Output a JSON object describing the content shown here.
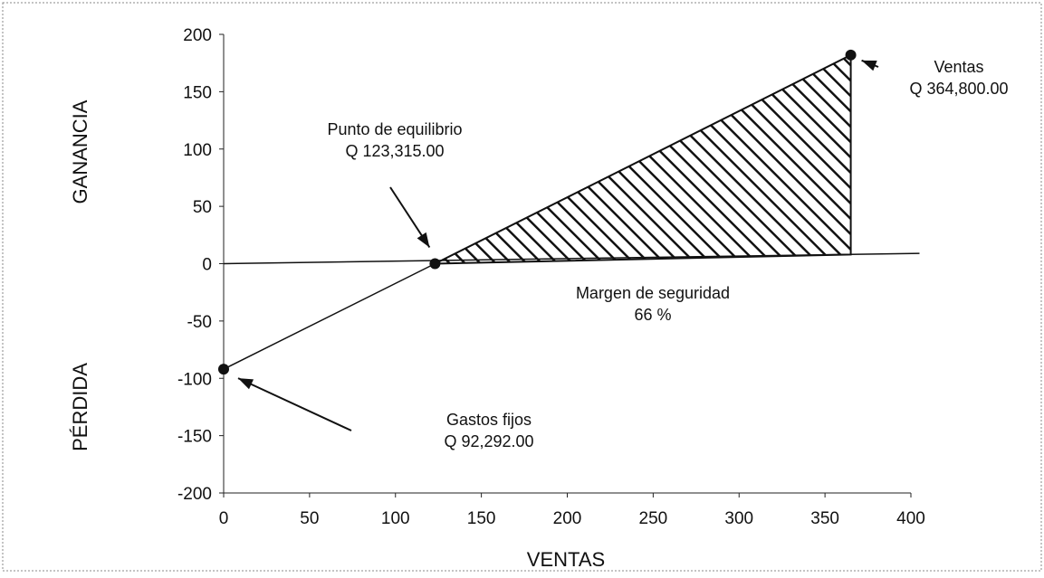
{
  "chart_data": {
    "type": "line",
    "xlabel": "VENTAS",
    "ylabel_positive": "GANANCIA",
    "ylabel_negative": "PÉRDIDA",
    "xlim": [
      0,
      400
    ],
    "ylim": [
      -200,
      200
    ],
    "xticks": [
      0,
      50,
      100,
      150,
      200,
      250,
      300,
      350,
      400
    ],
    "yticks": [
      200,
      150,
      100,
      50,
      0,
      -50,
      -100,
      -150,
      -200
    ],
    "xtick_labels": [
      "0",
      "50",
      "100",
      "150",
      "200",
      "250",
      "300",
      "350",
      "400"
    ],
    "ytick_labels": [
      "200",
      "150",
      "100",
      "50",
      "0",
      "-50",
      "-100",
      "-150",
      "-200"
    ],
    "grid": false,
    "series": [
      {
        "values": [
          {
            "x": 0,
            "y": -92
          },
          {
            "x": 123,
            "y": 0
          },
          {
            "x": 365,
            "y": 182
          }
        ]
      }
    ],
    "zero_line": [
      {
        "x": 0,
        "y": 0
      },
      {
        "x": 405,
        "y": 9
      }
    ],
    "shaded_region": {
      "fill": "hatched",
      "vertices": [
        {
          "x": 123,
          "y": 0
        },
        {
          "x": 365,
          "y": 182
        },
        {
          "x": 365,
          "y": 8
        }
      ]
    },
    "points": [
      {
        "name": "gastos-fijos",
        "x": 0,
        "y": -92
      },
      {
        "name": "punto-equilibrio",
        "x": 123,
        "y": 0
      },
      {
        "name": "ventas",
        "x": 365,
        "y": 182
      }
    ],
    "annotations": [
      {
        "name": "punto-equilibrio",
        "lines": [
          "Punto de equilibrio",
          "Q 123,315.00"
        ]
      },
      {
        "name": "ventas",
        "lines": [
          "Ventas",
          "Q 364,800.00"
        ]
      },
      {
        "name": "margen",
        "lines": [
          "Margen de seguridad",
          "66 %"
        ]
      },
      {
        "name": "gastos-fijos",
        "lines": [
          "Gastos fijos",
          "Q 92,292.00"
        ]
      }
    ]
  }
}
